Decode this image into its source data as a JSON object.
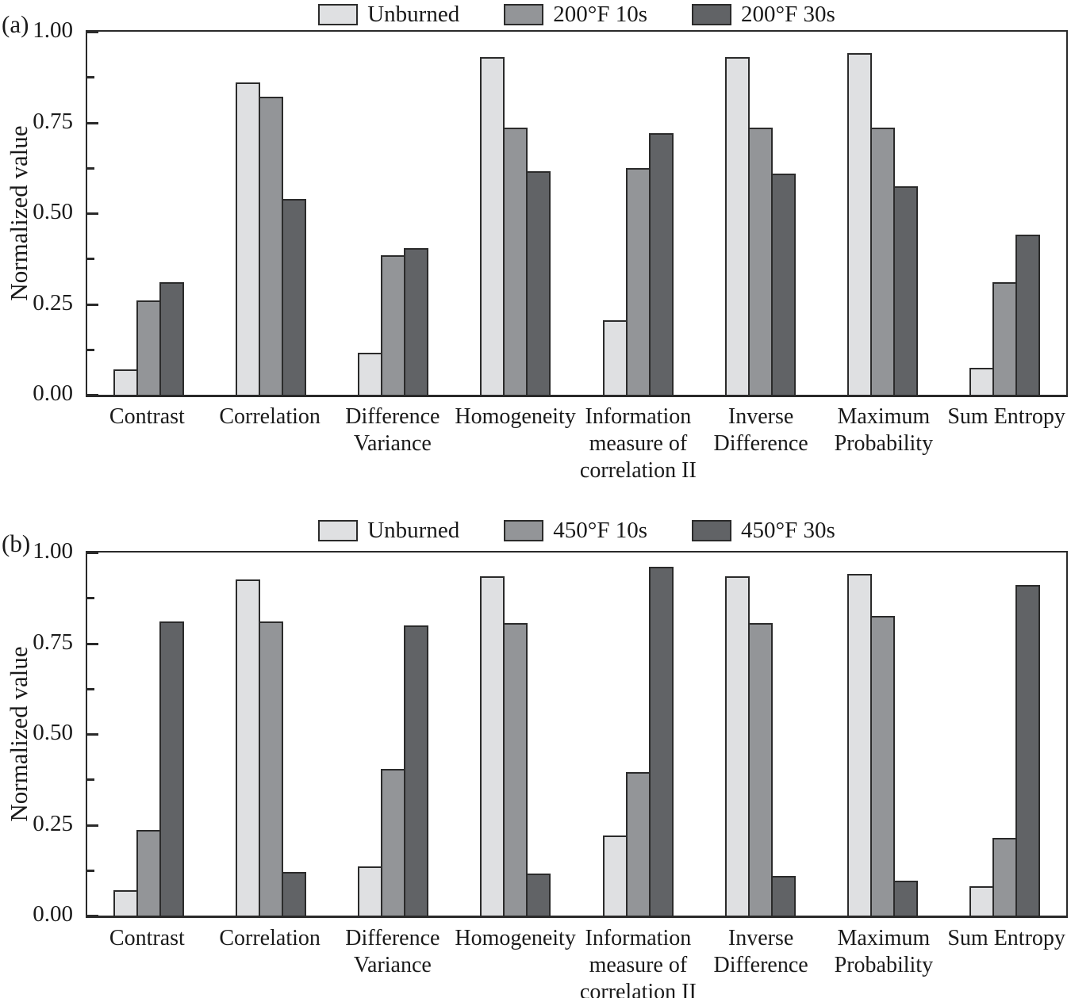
{
  "colors": {
    "axis": "#2a2a2a",
    "bar_border": "#2b2b2b",
    "series_light": "#dfe0e2",
    "series_medium": "#939598",
    "series_dark": "#616366",
    "background": "#ffffff"
  },
  "chart_data": [
    {
      "type": "bar",
      "panel_label": "(a)",
      "ylabel": "Normalized value",
      "ylim": [
        0.0,
        1.0
      ],
      "yticks_major": [
        "0.00",
        "0.25",
        "0.50",
        "0.75",
        "1.00"
      ],
      "ytick_minor_step": 0.125,
      "grid": false,
      "legend_position": "top",
      "categories": [
        "Contrast",
        "Correlation",
        "Difference Variance",
        "Homogeneity",
        "Information measure of correlation II",
        "Inverse Difference",
        "Maximum Probability",
        "Sum Entropy"
      ],
      "category_lines": [
        [
          "Contrast"
        ],
        [
          "Correlation"
        ],
        [
          "Difference",
          "Variance"
        ],
        [
          "Homogeneity"
        ],
        [
          "Information",
          "measure of",
          "correlation II"
        ],
        [
          "Inverse",
          "Difference"
        ],
        [
          "Maximum",
          "Probability"
        ],
        [
          "Sum Entropy"
        ]
      ],
      "series": [
        {
          "name": "Unburned",
          "color": "#dfe0e2",
          "values": [
            0.07,
            0.86,
            0.115,
            0.93,
            0.205,
            0.93,
            0.94,
            0.075
          ]
        },
        {
          "name": "200°F 10s",
          "color": "#939598",
          "values": [
            0.26,
            0.82,
            0.385,
            0.735,
            0.625,
            0.735,
            0.735,
            0.31
          ]
        },
        {
          "name": "200°F 30s",
          "color": "#616366",
          "values": [
            0.31,
            0.54,
            0.405,
            0.615,
            0.72,
            0.61,
            0.575,
            0.44
          ]
        }
      ]
    },
    {
      "type": "bar",
      "panel_label": "(b)",
      "ylabel": "Normalized value",
      "ylim": [
        0.0,
        1.0
      ],
      "yticks_major": [
        "0.00",
        "0.25",
        "0.50",
        "0.75",
        "1.00"
      ],
      "ytick_minor_step": 0.125,
      "grid": false,
      "legend_position": "top",
      "categories": [
        "Contrast",
        "Correlation",
        "Difference Variance",
        "Homogeneity",
        "Information measure of correlation II",
        "Inverse Difference",
        "Maximum Probability",
        "Sum Entropy"
      ],
      "category_lines": [
        [
          "Contrast"
        ],
        [
          "Correlation"
        ],
        [
          "Difference",
          "Variance"
        ],
        [
          "Homogeneity"
        ],
        [
          "Information",
          "measure of",
          "correlation II"
        ],
        [
          "Inverse",
          "Difference"
        ],
        [
          "Maximum",
          "Probability"
        ],
        [
          "Sum Entropy"
        ]
      ],
      "series": [
        {
          "name": "Unburned",
          "color": "#dfe0e2",
          "values": [
            0.07,
            0.925,
            0.135,
            0.935,
            0.22,
            0.935,
            0.94,
            0.08
          ]
        },
        {
          "name": "450°F 10s",
          "color": "#939598",
          "values": [
            0.235,
            0.81,
            0.405,
            0.805,
            0.395,
            0.805,
            0.825,
            0.215
          ]
        },
        {
          "name": "450°F 30s",
          "color": "#616366",
          "values": [
            0.81,
            0.12,
            0.8,
            0.115,
            0.96,
            0.11,
            0.095,
            0.91
          ]
        }
      ]
    }
  ]
}
